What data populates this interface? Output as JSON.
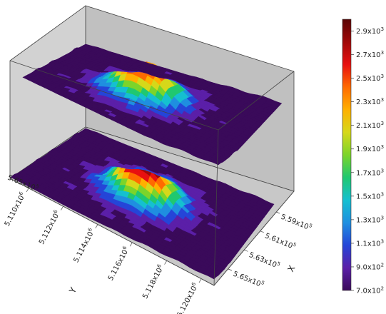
{
  "chart_data": {
    "type": "heatmap",
    "subtype": "3d-surface-stacked",
    "surfaces": [
      "upper",
      "lower"
    ],
    "x_axis_label": "X",
    "y_axis_label": "Y",
    "x_ticks": [
      {
        "v": 559000.0,
        "m": "5.59",
        "e": "5"
      },
      {
        "v": 561000.0,
        "m": "5.61",
        "e": "5"
      },
      {
        "v": 563000.0,
        "m": "5.63",
        "e": "5"
      },
      {
        "v": 565000.0,
        "m": "5.65",
        "e": "5"
      }
    ],
    "y_ticks": [
      {
        "v": 5110000.0,
        "m": "5.110",
        "e": "6"
      },
      {
        "v": 5112000.0,
        "m": "5.112",
        "e": "6"
      },
      {
        "v": 5114000.0,
        "m": "5.114",
        "e": "6"
      },
      {
        "v": 5116000.0,
        "m": "5.116",
        "e": "6"
      },
      {
        "v": 5118000.0,
        "m": "5.118",
        "e": "6"
      },
      {
        "v": 5120000.0,
        "m": "5.120",
        "e": "6"
      }
    ],
    "side_label": {
      "m": "5.65",
      "e": "5"
    },
    "colorbar": {
      "min": 700,
      "max": 3000,
      "colors": [
        "#3a0a5a",
        "#5b1fa8",
        "#2545d8",
        "#1f8fe0",
        "#15c0d0",
        "#20c870",
        "#7cd42a",
        "#d6d81a",
        "#ffb000",
        "#ff6a00",
        "#e81010",
        "#a00808",
        "#5a0505"
      ],
      "ticks": [
        {
          "v": 700,
          "m": "7.0",
          "e": "2"
        },
        {
          "v": 900,
          "m": "9.0",
          "e": "2"
        },
        {
          "v": 1100,
          "m": "1.1",
          "e": "3"
        },
        {
          "v": 1300,
          "m": "1.3",
          "e": "3"
        },
        {
          "v": 1500,
          "m": "1.5",
          "e": "3"
        },
        {
          "v": 1700,
          "m": "1.7",
          "e": "3"
        },
        {
          "v": 1900,
          "m": "1.9",
          "e": "3"
        },
        {
          "v": 2100,
          "m": "2.1",
          "e": "3"
        },
        {
          "v": 2300,
          "m": "2.3",
          "e": "3"
        },
        {
          "v": 2500,
          "m": "2.5",
          "e": "3"
        },
        {
          "v": 2700,
          "m": "2.7",
          "e": "3"
        },
        {
          "v": 2900,
          "m": "2.9",
          "e": "3"
        }
      ]
    },
    "grid": false,
    "legend": "right"
  }
}
